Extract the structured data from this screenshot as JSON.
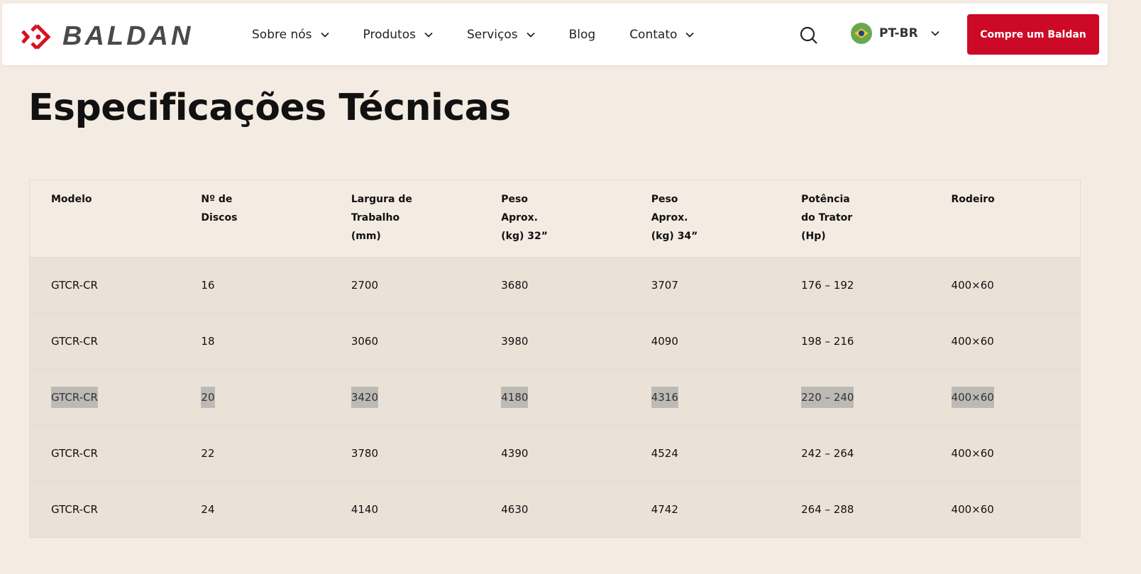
{
  "header": {
    "logo_text": "BALDAN",
    "nav": [
      {
        "label": "Sobre nós",
        "has_dropdown": true
      },
      {
        "label": "Produtos",
        "has_dropdown": true
      },
      {
        "label": "Serviços",
        "has_dropdown": true
      },
      {
        "label": "Blog",
        "has_dropdown": false
      },
      {
        "label": "Contato",
        "has_dropdown": true
      }
    ],
    "language": "PT-BR",
    "cta_label": "Compre um Baldan",
    "brand_color": "#cc0a27"
  },
  "page_title": "Especificações Técnicas",
  "table": {
    "headers": [
      [
        "Modelo"
      ],
      [
        "Nº de",
        "Discos"
      ],
      [
        "Largura de",
        "Trabalho",
        "(mm)"
      ],
      [
        "Peso",
        "Aprox.",
        "(kg) 32”"
      ],
      [
        "Peso",
        "Aprox.",
        "(kg) 34”"
      ],
      [
        "Potência",
        "do Trator",
        "(Hp)"
      ],
      [
        "Rodeiro"
      ]
    ],
    "rows": [
      [
        "GTCR-CR",
        "16",
        "2700",
        "3680",
        "3707",
        "176 – 192",
        "400×60"
      ],
      [
        "GTCR-CR",
        "18",
        "3060",
        "3980",
        "4090",
        "198 – 216",
        "400×60"
      ],
      [
        "GTCR-CR",
        "20",
        "3420",
        "4180",
        "4316",
        "220 – 240",
        "400×60"
      ],
      [
        "GTCR-CR",
        "22",
        "3780",
        "4390",
        "4524",
        "242 – 264",
        "400×60"
      ],
      [
        "GTCR-CR",
        "24",
        "4140",
        "4630",
        "4742",
        "264 – 288",
        "400×60"
      ]
    ],
    "selected_row": 2
  }
}
